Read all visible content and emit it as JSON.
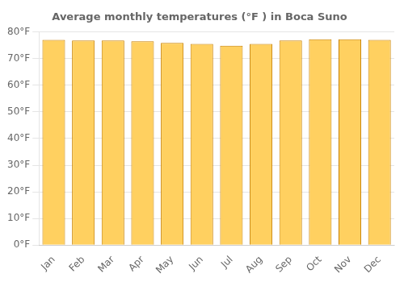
{
  "chart_data": {
    "type": "bar",
    "title": "Average monthly temperatures (°F ) in Boca Suno",
    "categories": [
      "Jan",
      "Feb",
      "Mar",
      "Apr",
      "May",
      "Jun",
      "Jul",
      "Aug",
      "Sep",
      "Oct",
      "Nov",
      "Dec"
    ],
    "values": [
      77.0,
      76.8,
      76.8,
      76.5,
      75.9,
      75.5,
      74.8,
      75.5,
      76.8,
      77.2,
      77.2,
      77.0
    ],
    "color": "#FFD060",
    "ylim": [
      0,
      80
    ],
    "yticks": [
      {
        "value": 0,
        "label": "0°F"
      },
      {
        "value": 10,
        "label": "10°F"
      },
      {
        "value": 20,
        "label": "20°F"
      },
      {
        "value": 30,
        "label": "30°F"
      },
      {
        "value": 40,
        "label": "40°F"
      },
      {
        "value": 50,
        "label": "50°F"
      },
      {
        "value": 60,
        "label": "60°F"
      },
      {
        "value": 70,
        "label": "70°F"
      },
      {
        "value": 80,
        "label": "80°F"
      }
    ],
    "grid": true
  }
}
